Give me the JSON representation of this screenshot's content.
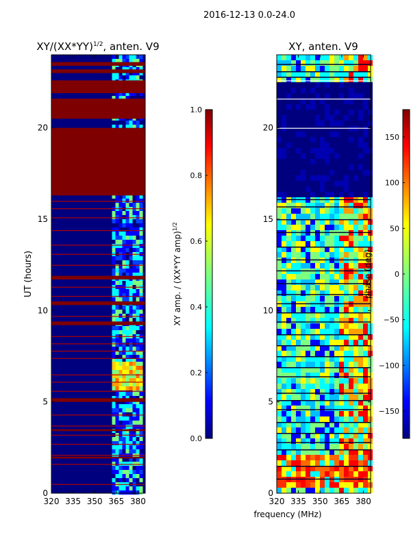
{
  "figure": {
    "suptitle": "2016-12-13 0.0-24.0",
    "xlabel": "frequency (MHz)"
  },
  "colors": {
    "jet_dark_blue": "#00007f",
    "jet_blue": "#0000ff",
    "jet_cyan": "#00ffff",
    "jet_green": "#7fff7f",
    "jet_yellow": "#ffff00",
    "jet_red": "#ff0000",
    "jet_dark_red": "#7f0000"
  },
  "chart_data": [
    {
      "type": "heatmap",
      "title_main": "XY/(XX*YY)",
      "title_sup": "1/2",
      "title_tail": ", anten. V9",
      "ylabel": "UT (hours)",
      "xlim": [
        320,
        385
      ],
      "ylim": [
        0,
        24
      ],
      "xticks": [
        320,
        335,
        350,
        365,
        380
      ],
      "yticks": [
        0,
        5,
        10,
        15,
        20
      ],
      "colorbar": {
        "label": "XY amp. / (XX*YY amp)",
        "label_sup": "1/2",
        "range": [
          0,
          1
        ],
        "ticks": [
          "0.0",
          "0.2",
          "0.4",
          "0.6",
          "0.8",
          "1.0"
        ]
      },
      "saturated_bands_hours": [
        [
          16.3,
          20.0
        ],
        [
          20.5,
          21.6
        ],
        [
          21.9,
          22.6
        ],
        [
          23.0,
          23.2
        ],
        [
          23.4,
          23.6
        ],
        [
          11.7,
          11.9
        ],
        [
          10.3,
          10.5
        ],
        [
          9.2,
          9.4
        ],
        [
          5.0,
          5.2
        ],
        [
          3.4,
          3.5
        ],
        [
          1.9,
          2.0
        ]
      ],
      "bright_channel_range_mhz": [
        362,
        381
      ],
      "bright_feature_hours": [
        5.8,
        7.2
      ]
    },
    {
      "type": "heatmap",
      "title": "XY, anten. V9",
      "xlim": [
        320,
        385
      ],
      "ylim": [
        0,
        24
      ],
      "xticks": [
        320,
        335,
        350,
        365,
        380
      ],
      "yticks": [
        0,
        5,
        10,
        15,
        20
      ],
      "colorbar": {
        "label": "phase (deg)",
        "range": [
          -180,
          180
        ],
        "ticks": [
          "-150",
          "-100",
          "-50",
          "0",
          "50",
          "100",
          "150"
        ]
      },
      "flagged_band_hours": [
        [
          16.3,
          22.6
        ]
      ],
      "warm_region_hours": [
        0.3,
        2.2
      ]
    }
  ]
}
